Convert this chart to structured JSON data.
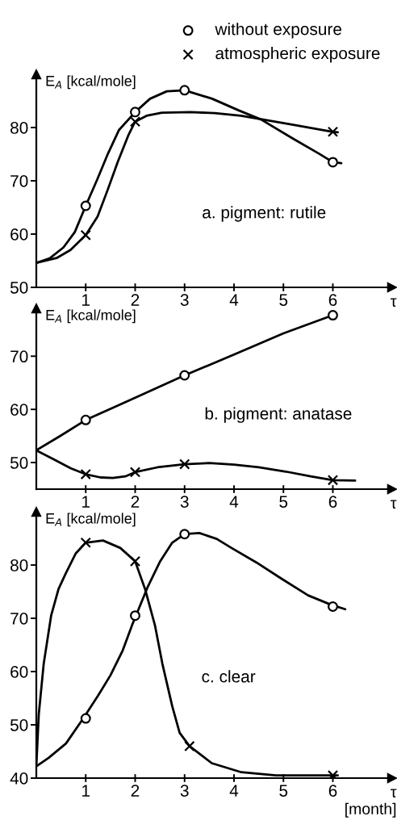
{
  "chart_data": [
    {
      "type": "line",
      "xlabel": "τ",
      "ylabel": "E$_{A}$ [kcal/mole]",
      "annotations": [
        "a. pigment: rutile"
      ],
      "xlim": [
        0,
        7.2
      ],
      "ylim": [
        50,
        90
      ],
      "xticks": [
        1,
        2,
        3,
        4,
        5,
        6
      ],
      "yticks": [
        50,
        60,
        70,
        80
      ],
      "legend": "top right",
      "series": [
        {
          "color": "#000000",
          "x": [
            0,
            0.28,
            0.55,
            0.78,
            1,
            1.23,
            1.45,
            1.67,
            2,
            2.3,
            2.64,
            3,
            3.56,
            4.1,
            4.55,
            5.18,
            5.72,
            6,
            6.17
          ],
          "values": [
            54.6,
            55.5,
            57.5,
            60.4,
            65.3,
            70.2,
            75.1,
            79.5,
            82.9,
            85.4,
            86.8,
            87.0,
            85.4,
            83.2,
            81.5,
            78.0,
            75.1,
            73.5,
            73.3
          ]
        },
        {
          "color": "#000000",
          "x": [
            0,
            0.41,
            0.69,
            1,
            1.24,
            1.44,
            1.65,
            1.86,
            2,
            2.23,
            2.54,
            3.12,
            3.61,
            4.14,
            4.59,
            5.2,
            6,
            6.1
          ],
          "values": [
            54.6,
            55.5,
            57.0,
            59.8,
            63.3,
            68.2,
            73.6,
            78.5,
            81.1,
            82.2,
            82.8,
            82.9,
            82.7,
            82.2,
            81.5,
            80.5,
            79.2,
            79.1
          ]
        },
        {
          "type": "scatter",
          "name": "without exposure",
          "color": "#000000",
          "marker": "circle",
          "x": [
            1,
            2,
            3,
            6
          ],
          "values": [
            65.3,
            82.9,
            87.0,
            73.5
          ]
        },
        {
          "type": "scatter",
          "name": "atmospheric exposure",
          "color": "#000000",
          "marker": "cross",
          "x": [
            1,
            2,
            6
          ],
          "values": [
            59.8,
            81.1,
            79.2
          ]
        }
      ]
    },
    {
      "type": "line",
      "xlabel": "τ",
      "ylabel": "E$_{A}$ [kcal/mole]",
      "annotations": [
        "b. pigment: anatase"
      ],
      "xlim": [
        0,
        7.2
      ],
      "ylim": [
        45,
        79
      ],
      "xticks": [
        1,
        2,
        3,
        4,
        5,
        6
      ],
      "yticks": [
        50,
        60,
        70
      ],
      "series": [
        {
          "color": "#000000",
          "x": [
            0,
            0.5,
            1,
            2,
            3,
            4,
            5,
            6
          ],
          "values": [
            52.3,
            55.1,
            58.0,
            62.2,
            66.4,
            70.3,
            74.3,
            77.7
          ]
        },
        {
          "color": "#000000",
          "x": [
            0,
            0.35,
            0.7,
            1,
            1.3,
            1.55,
            1.8,
            2,
            2.45,
            3,
            3.5,
            4,
            4.5,
            5.05,
            5.55,
            6,
            6.45
          ],
          "values": [
            52.3,
            50.6,
            48.9,
            47.8,
            47.2,
            47.1,
            47.4,
            48.2,
            49.1,
            49.7,
            49.9,
            49.6,
            49.1,
            48.3,
            47.4,
            46.7,
            46.6
          ]
        },
        {
          "type": "scatter",
          "color": "#000000",
          "marker": "circle",
          "x": [
            1,
            3,
            6
          ],
          "values": [
            58.0,
            66.4,
            77.7
          ]
        },
        {
          "type": "scatter",
          "color": "#000000",
          "marker": "cross",
          "x": [
            1,
            2,
            3,
            6
          ],
          "values": [
            47.8,
            48.2,
            49.7,
            46.7
          ]
        }
      ]
    },
    {
      "type": "line",
      "xlabel": "τ\n[month]",
      "ylabel": "E$_{A}$ [kcal/mole]",
      "annotations": [
        "c. clear"
      ],
      "xlim": [
        0,
        7.2
      ],
      "ylim": [
        40,
        90
      ],
      "xticks": [
        1,
        2,
        3,
        4,
        5,
        6
      ],
      "yticks": [
        40,
        50,
        60,
        70,
        80
      ],
      "series": [
        {
          "color": "#000000",
          "x": [
            0,
            0.25,
            0.6,
            0.95,
            1.25,
            1.5,
            1.75,
            1.95,
            2.25,
            2.5,
            2.75,
            3,
            3.3,
            3.65,
            3.95,
            4.45,
            4.95,
            5.5,
            5.95,
            6.25
          ],
          "values": [
            42.2,
            43.8,
            46.5,
            51.2,
            55.5,
            59.3,
            64.0,
            69.0,
            75.8,
            80.6,
            84.2,
            85.8,
            86.0,
            84.9,
            83.2,
            80.5,
            77.5,
            74.3,
            72.6,
            71.7
          ]
        },
        {
          "color": "#000000",
          "x": [
            0,
            0.05,
            0.15,
            0.3,
            0.45,
            0.6,
            0.8,
            1,
            1.35,
            1.7,
            2,
            2.2,
            2.4,
            2.55,
            2.75,
            2.9,
            3.1,
            3.55,
            4.15,
            4.85,
            5.5,
            6,
            6.1
          ],
          "values": [
            42.2,
            52.0,
            61.5,
            70.5,
            75.5,
            78.5,
            82.2,
            84.2,
            84.6,
            83.2,
            80.7,
            75.5,
            68.7,
            61.5,
            53.5,
            48.5,
            46.0,
            42.8,
            41.1,
            40.5,
            40.5,
            40.5,
            40.5
          ]
        },
        {
          "type": "scatter",
          "color": "#000000",
          "marker": "circle",
          "x": [
            1,
            2,
            3,
            6
          ],
          "values": [
            51.2,
            70.5,
            85.8,
            72.2
          ]
        },
        {
          "type": "scatter",
          "color": "#000000",
          "marker": "cross",
          "x": [
            1,
            2,
            3.1,
            6
          ],
          "values": [
            84.2,
            80.7,
            46.0,
            40.5
          ]
        }
      ]
    }
  ]
}
